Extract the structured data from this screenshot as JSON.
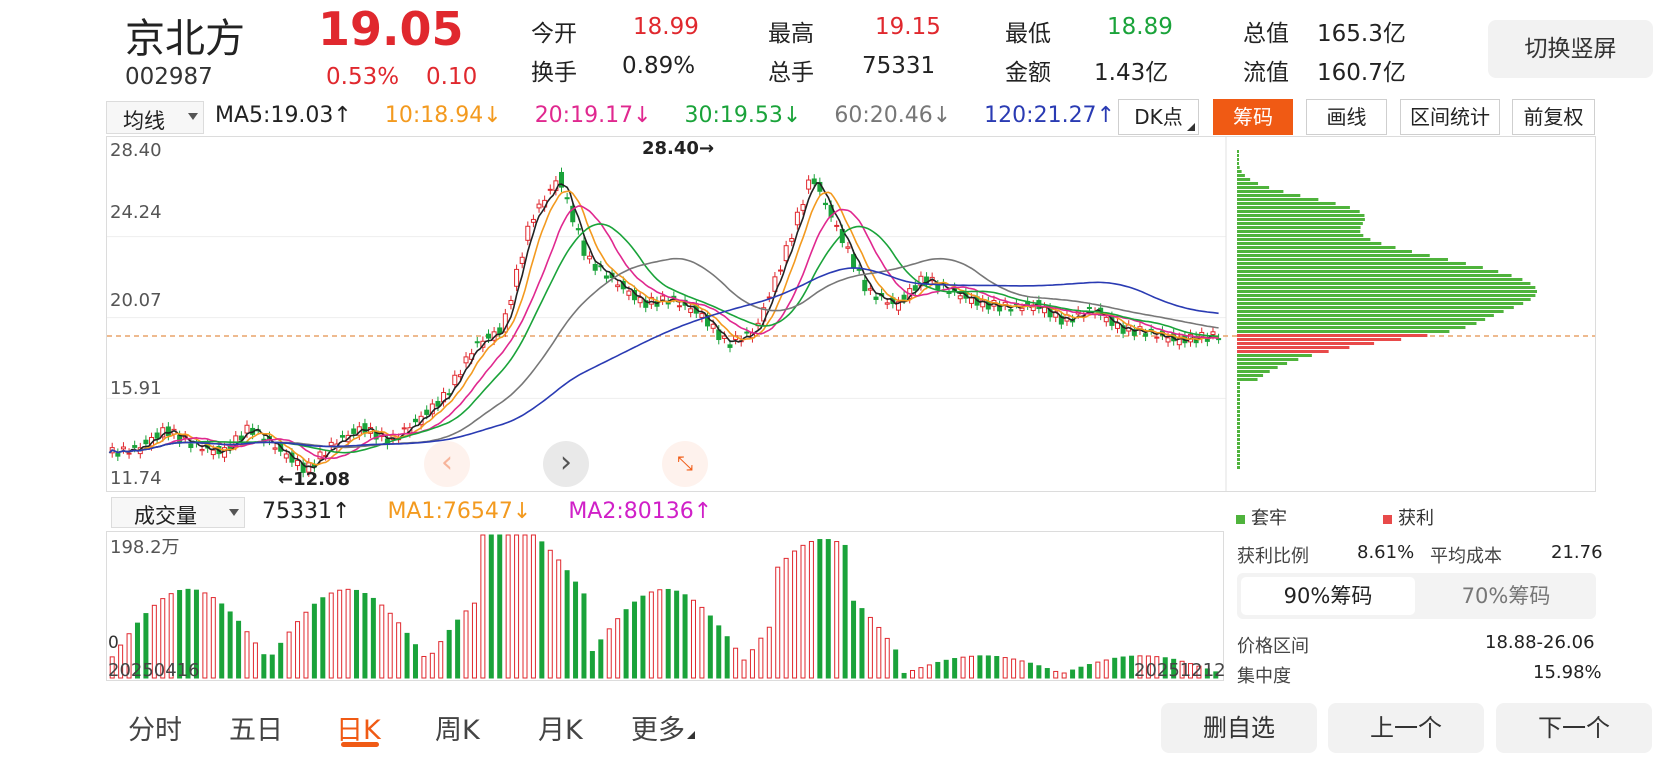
{
  "header": {
    "stock_name": "京北方",
    "stock_code": "002987",
    "price": "19.05",
    "change_pct": "0.53%",
    "change_amt": "0.10",
    "stats": [
      {
        "label": "今开",
        "value": "18.99",
        "color": "red"
      },
      {
        "label": "最高",
        "value": "19.15",
        "color": "red"
      },
      {
        "label": "最低",
        "value": "18.89",
        "color": "green"
      },
      {
        "label": "总值",
        "value": "165.3亿",
        "color": "black"
      },
      {
        "label": "换手",
        "value": "0.89%",
        "color": "black"
      },
      {
        "label": "总手",
        "value": "75331",
        "color": "black"
      },
      {
        "label": "金额",
        "value": "1.43亿",
        "color": "black"
      },
      {
        "label": "流值",
        "value": "160.7亿",
        "color": "black"
      }
    ],
    "switch_button": "切换竖屏"
  },
  "ma_bar": {
    "select_label": "均线",
    "items": [
      {
        "text": "MA5:19.03",
        "arrow": "↑",
        "color": "#222222"
      },
      {
        "text": "10:18.94",
        "arrow": "↓",
        "color": "#f39a1f"
      },
      {
        "text": "20:19.17",
        "arrow": "↓",
        "color": "#e0288f"
      },
      {
        "text": "30:19.53",
        "arrow": "↓",
        "color": "#1aa33a"
      },
      {
        "text": "60:20.46",
        "arrow": "↓",
        "color": "#777777"
      },
      {
        "text": "120:21.27",
        "arrow": "↑",
        "color": "#2a3bb3"
      }
    ],
    "dk_label": "DK点",
    "buttons": [
      "筹码",
      "画线",
      "区间统计",
      "前复权"
    ]
  },
  "price_chart": {
    "y_ticks": [
      "28.40",
      "24.24",
      "20.07",
      "15.91",
      "11.74"
    ],
    "high_label": "28.40",
    "low_label": "12.08",
    "nav_prev": "‹",
    "nav_next": "›"
  },
  "volume_bar": {
    "select_label": "成交量",
    "value": "75331",
    "value_arrow": "↑",
    "ma1": "MA1:76547",
    "ma1_arrow": "↓",
    "ma2": "MA2:80136",
    "ma2_arrow": "↑",
    "y_top": "198.2万",
    "y_zero": "0",
    "date_start": "20250416",
    "date_end": "20251212"
  },
  "chips": {
    "legend_trapped": "套牢",
    "legend_profit": "获利",
    "profit_ratio_label": "获利比例",
    "profit_ratio": "8.61%",
    "avg_cost_label": "平均成本",
    "avg_cost": "21.76",
    "tab_90": "90%筹码",
    "tab_70": "70%筹码",
    "price_range_label": "价格区间",
    "price_range": "18.88-26.06",
    "concentration_label": "集中度",
    "concentration": "15.98%"
  },
  "bottom_tabs": [
    "分时",
    "五日",
    "日K",
    "周K",
    "月K",
    "更多"
  ],
  "bottom_buttons": [
    "删自选",
    "上一个",
    "下一个"
  ],
  "colors": {
    "up": "#e0282e",
    "down": "#1aa33a",
    "accent": "#f05a14"
  }
}
